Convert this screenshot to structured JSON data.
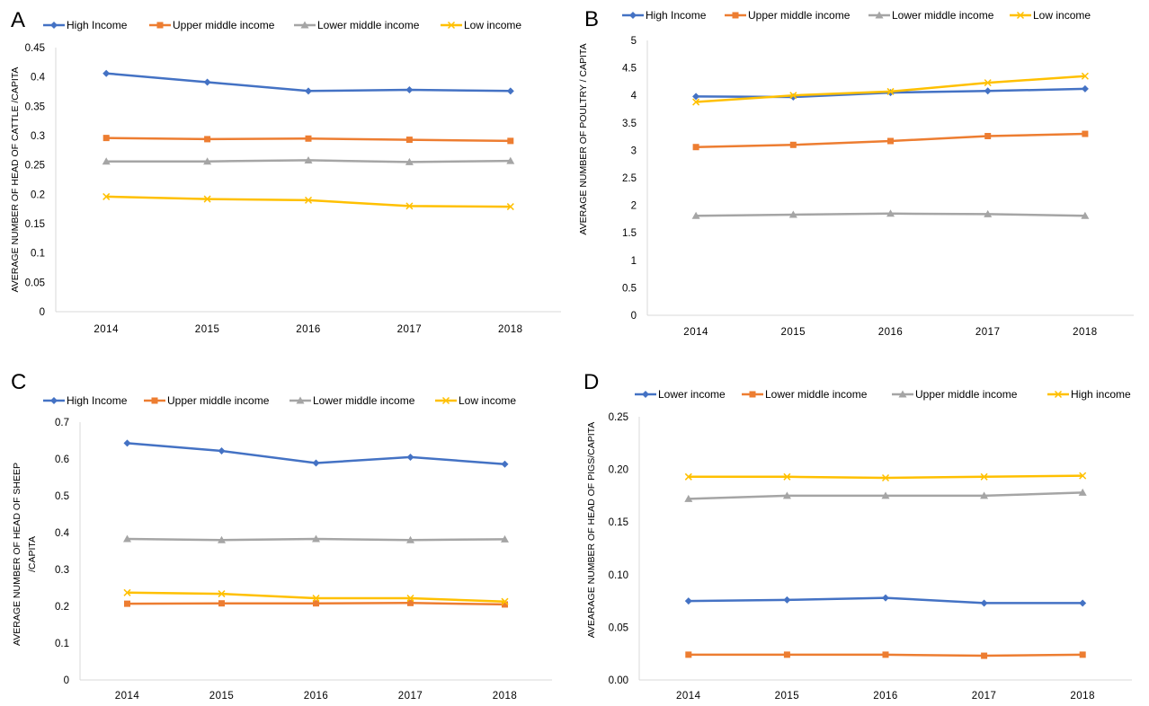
{
  "colors": {
    "blue": "#4472C4",
    "orange": "#ED7D31",
    "gray": "#A5A5A5",
    "yellow": "#FFC000",
    "axis": "#D9D9D9"
  },
  "chart_data": [
    {
      "type": "line",
      "panel_label": "A",
      "title": "",
      "xlabel": "",
      "ylabel": "AVERAGE NUMBER OF HEAD OF CATTLE /CAPITA",
      "categories": [
        "2014",
        "2015",
        "2016",
        "2017",
        "2018"
      ],
      "ylim": [
        0,
        0.45
      ],
      "yticks": [
        "0",
        "0.05",
        "0.1",
        "0.15",
        "0.2",
        "0.25",
        "0.3",
        "0.35",
        "0.4",
        "0.45"
      ],
      "grid": false,
      "legend_position": "top",
      "series": [
        {
          "name": "High Income",
          "color": "blue",
          "marker": "diamond",
          "values": [
            0.406,
            0.391,
            0.376,
            0.378,
            0.376
          ]
        },
        {
          "name": "Upper middle income",
          "color": "orange",
          "marker": "square",
          "values": [
            0.296,
            0.294,
            0.295,
            0.293,
            0.291
          ]
        },
        {
          "name": "Lower middle income",
          "color": "gray",
          "marker": "triangle",
          "values": [
            0.256,
            0.256,
            0.258,
            0.255,
            0.257
          ]
        },
        {
          "name": "Low income",
          "color": "yellow",
          "marker": "x",
          "values": [
            0.196,
            0.192,
            0.19,
            0.18,
            0.179
          ]
        }
      ]
    },
    {
      "type": "line",
      "panel_label": "B",
      "title": "",
      "xlabel": "",
      "ylabel": "AVERAGE NUMBER OF POULTRY / CAPITA",
      "categories": [
        "2014",
        "2015",
        "2016",
        "2017",
        "2018"
      ],
      "ylim": [
        0,
        5
      ],
      "yticks": [
        "0",
        "0.5",
        "1",
        "1.5",
        "2",
        "2.5",
        "3",
        "3.5",
        "4",
        "4.5",
        "5"
      ],
      "grid": false,
      "legend_position": "top",
      "series": [
        {
          "name": "High Income",
          "color": "blue",
          "marker": "diamond",
          "values": [
            3.98,
            3.97,
            4.05,
            4.08,
            4.12
          ]
        },
        {
          "name": "Upper middle income",
          "color": "orange",
          "marker": "square",
          "values": [
            3.06,
            3.1,
            3.17,
            3.26,
            3.3
          ]
        },
        {
          "name": "Lower middle income",
          "color": "gray",
          "marker": "triangle",
          "values": [
            1.81,
            1.83,
            1.85,
            1.84,
            1.81
          ]
        },
        {
          "name": "Low income",
          "color": "yellow",
          "marker": "x",
          "values": [
            3.88,
            4.0,
            4.07,
            4.23,
            4.35
          ]
        }
      ]
    },
    {
      "type": "line",
      "panel_label": "C",
      "title": "",
      "xlabel": "",
      "ylabel": "AVERAGE  NUMBER OF HEAD OF SHEEP /CAPITA",
      "ylabel_lines": [
        "AVERAGE  NUMBER OF HEAD OF SHEEP",
        "/CAPITA"
      ],
      "categories": [
        "2014",
        "2015",
        "2016",
        "2017",
        "2018"
      ],
      "ylim": [
        0,
        0.7
      ],
      "yticks": [
        "0",
        "0.1",
        "0.2",
        "0.3",
        "0.4",
        "0.5",
        "0.6",
        "0.7"
      ],
      "grid": false,
      "legend_position": "top",
      "series": [
        {
          "name": "High Income",
          "color": "blue",
          "marker": "diamond",
          "values": [
            0.643,
            0.622,
            0.589,
            0.605,
            0.586
          ]
        },
        {
          "name": "Upper middle income",
          "color": "orange",
          "marker": "square",
          "values": [
            0.207,
            0.208,
            0.208,
            0.209,
            0.205
          ]
        },
        {
          "name": "Lower middle income",
          "color": "gray",
          "marker": "triangle",
          "values": [
            0.383,
            0.38,
            0.383,
            0.38,
            0.382
          ]
        },
        {
          "name": "Low income",
          "color": "yellow",
          "marker": "x",
          "values": [
            0.237,
            0.234,
            0.222,
            0.222,
            0.213
          ]
        }
      ]
    },
    {
      "type": "line",
      "panel_label": "D",
      "title": "",
      "xlabel": "",
      "ylabel": "AVEARAGE NUMBER OF HEAD OF PIGS/CAPITA",
      "categories": [
        "2014",
        "2015",
        "2016",
        "2017",
        "2018"
      ],
      "ylim": [
        0,
        0.25
      ],
      "yticks": [
        "0.00",
        "0.05",
        "0.10",
        "0.15",
        "0.20",
        "0.25"
      ],
      "grid": false,
      "legend_position": "top",
      "series": [
        {
          "name": "Lower income",
          "color": "blue",
          "marker": "diamond",
          "values": [
            0.075,
            0.076,
            0.078,
            0.073,
            0.073
          ]
        },
        {
          "name": "Lower middle income",
          "color": "orange",
          "marker": "square",
          "values": [
            0.024,
            0.024,
            0.024,
            0.023,
            0.024
          ]
        },
        {
          "name": "Upper middle income",
          "color": "gray",
          "marker": "triangle",
          "values": [
            0.172,
            0.175,
            0.175,
            0.175,
            0.178
          ]
        },
        {
          "name": "High income",
          "color": "yellow",
          "marker": "x",
          "values": [
            0.193,
            0.193,
            0.192,
            0.193,
            0.194
          ]
        }
      ]
    }
  ]
}
